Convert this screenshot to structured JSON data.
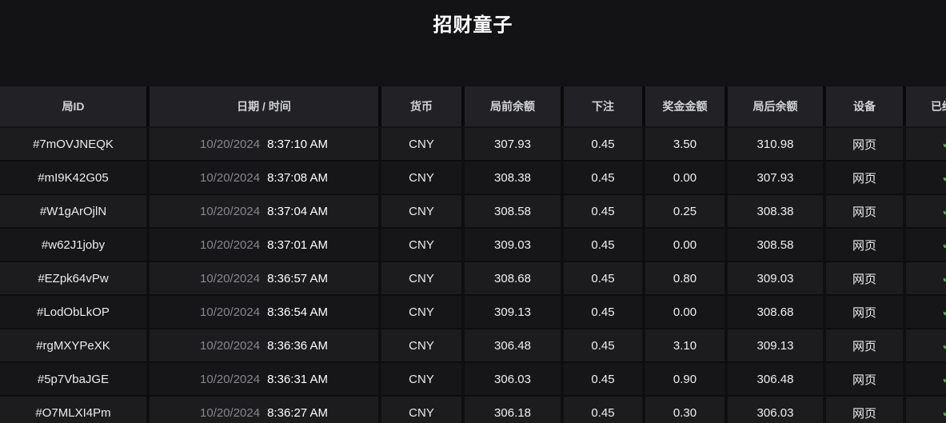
{
  "title": "招财童子",
  "colors": {
    "check_green": "#2fc12f",
    "date_gray": "#87878c"
  },
  "icons": {
    "settled_check": "✓"
  },
  "table": {
    "columns": [
      {
        "key": "round_id",
        "label": "局ID"
      },
      {
        "key": "datetime",
        "label": "日期 / 时间"
      },
      {
        "key": "currency",
        "label": "货币"
      },
      {
        "key": "balance_before",
        "label": "局前余额"
      },
      {
        "key": "bet",
        "label": "下注"
      },
      {
        "key": "prize",
        "label": "奖金金额"
      },
      {
        "key": "balance_after",
        "label": "局后余额"
      },
      {
        "key": "device",
        "label": "设备"
      },
      {
        "key": "settled",
        "label": "已结算"
      }
    ],
    "rows": [
      {
        "round_id": "#7mOVJNEQK",
        "date": "10/20/2024",
        "time": "8:37:10 AM",
        "currency": "CNY",
        "balance_before": "307.93",
        "bet": "0.45",
        "prize": "3.50",
        "balance_after": "310.98",
        "device": "网页",
        "settled": true
      },
      {
        "round_id": "#mI9K42G05",
        "date": "10/20/2024",
        "time": "8:37:08 AM",
        "currency": "CNY",
        "balance_before": "308.38",
        "bet": "0.45",
        "prize": "0.00",
        "balance_after": "307.93",
        "device": "网页",
        "settled": true
      },
      {
        "round_id": "#W1gArOjlN",
        "date": "10/20/2024",
        "time": "8:37:04 AM",
        "currency": "CNY",
        "balance_before": "308.58",
        "bet": "0.45",
        "prize": "0.25",
        "balance_after": "308.38",
        "device": "网页",
        "settled": true
      },
      {
        "round_id": "#w62J1joby",
        "date": "10/20/2024",
        "time": "8:37:01 AM",
        "currency": "CNY",
        "balance_before": "309.03",
        "bet": "0.45",
        "prize": "0.00",
        "balance_after": "308.58",
        "device": "网页",
        "settled": true
      },
      {
        "round_id": "#EZpk64vPw",
        "date": "10/20/2024",
        "time": "8:36:57 AM",
        "currency": "CNY",
        "balance_before": "308.68",
        "bet": "0.45",
        "prize": "0.80",
        "balance_after": "309.03",
        "device": "网页",
        "settled": true
      },
      {
        "round_id": "#LodObLkOP",
        "date": "10/20/2024",
        "time": "8:36:54 AM",
        "currency": "CNY",
        "balance_before": "309.13",
        "bet": "0.45",
        "prize": "0.00",
        "balance_after": "308.68",
        "device": "网页",
        "settled": true
      },
      {
        "round_id": "#rgMXYPeXK",
        "date": "10/20/2024",
        "time": "8:36:36 AM",
        "currency": "CNY",
        "balance_before": "306.48",
        "bet": "0.45",
        "prize": "3.10",
        "balance_after": "309.13",
        "device": "网页",
        "settled": true
      },
      {
        "round_id": "#5p7VbaJGE",
        "date": "10/20/2024",
        "time": "8:36:31 AM",
        "currency": "CNY",
        "balance_before": "306.03",
        "bet": "0.45",
        "prize": "0.90",
        "balance_after": "306.48",
        "device": "网页",
        "settled": true
      },
      {
        "round_id": "#O7MLXI4Pm",
        "date": "10/20/2024",
        "time": "8:36:27 AM",
        "currency": "CNY",
        "balance_before": "306.18",
        "bet": "0.45",
        "prize": "0.30",
        "balance_after": "306.03",
        "device": "网页",
        "settled": true
      }
    ]
  }
}
